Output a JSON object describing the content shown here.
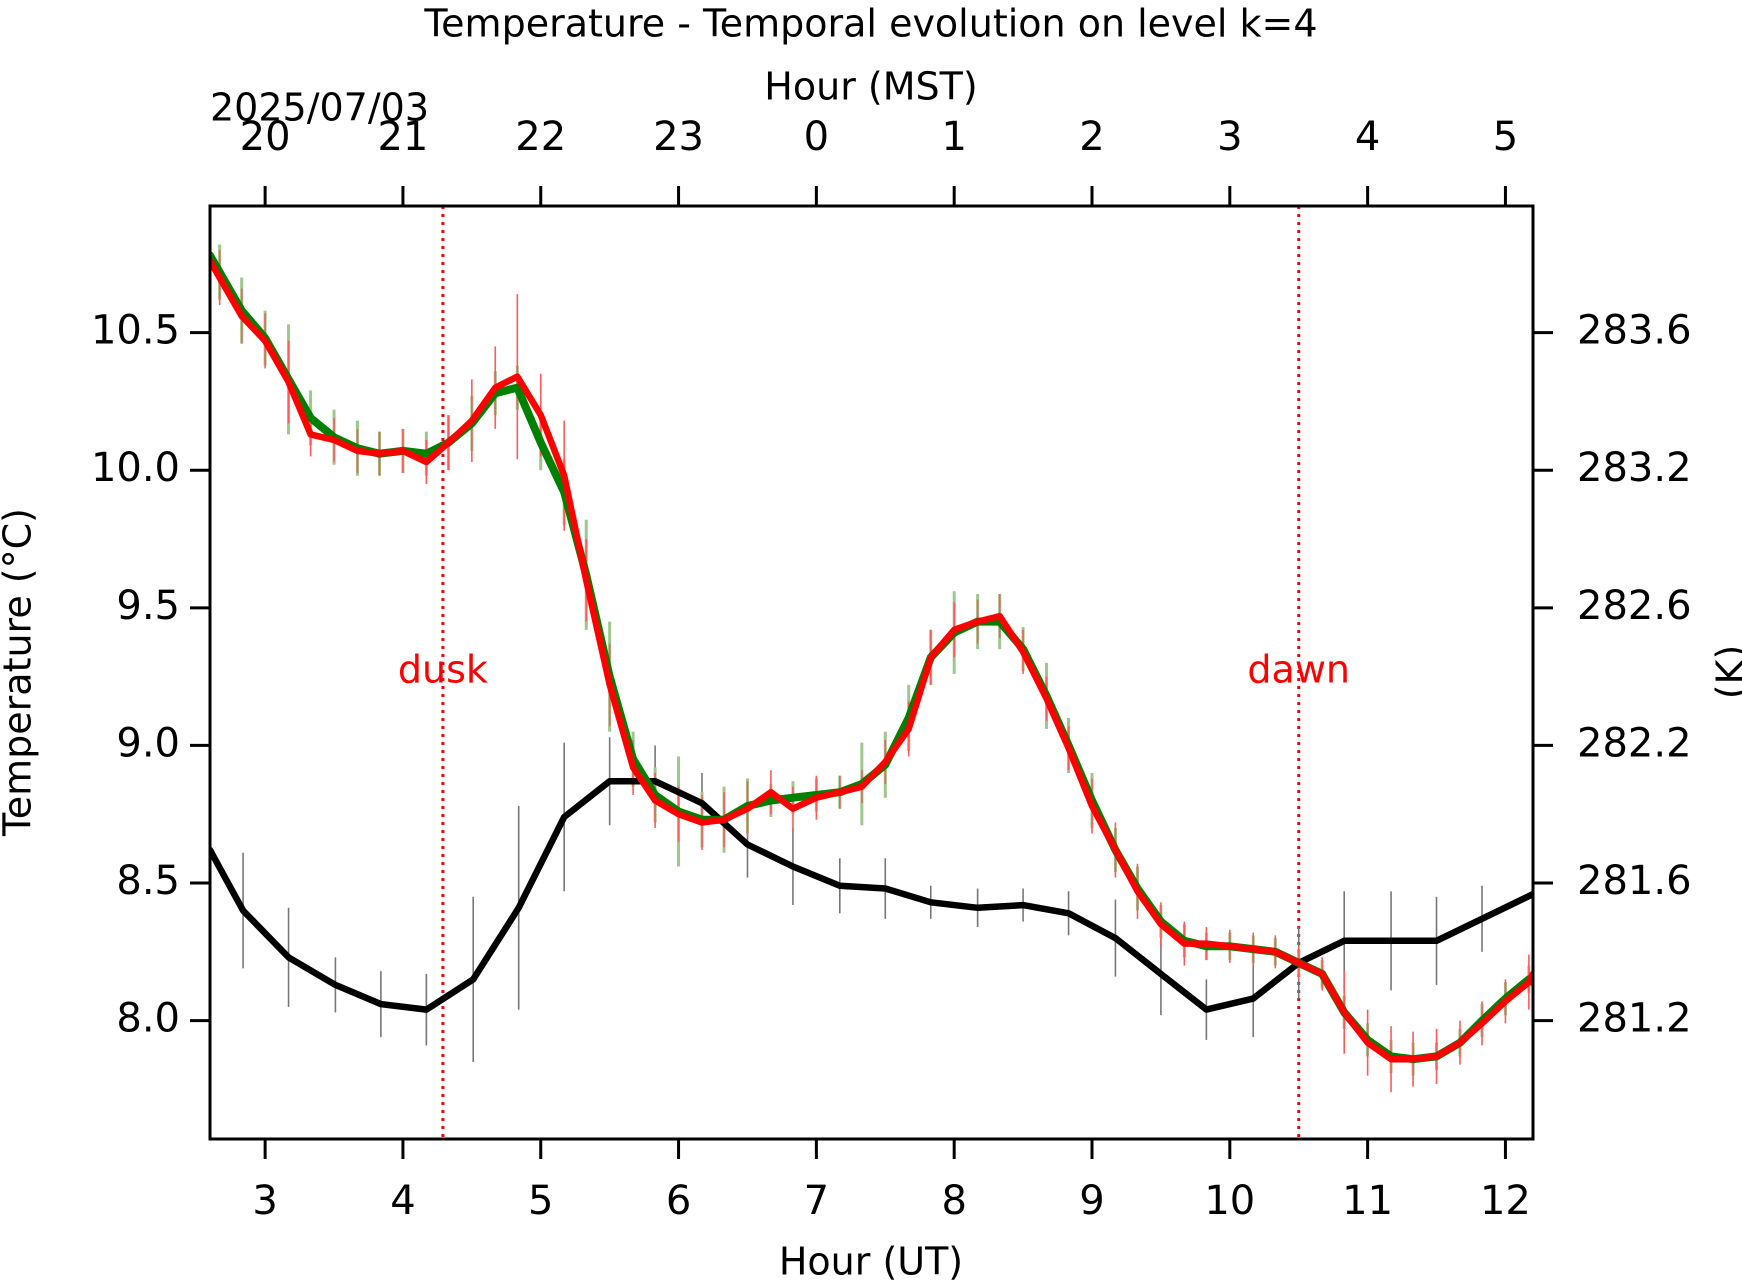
{
  "chart_data": {
    "type": "line",
    "title": "Temperature - Temporal evolution on level k=4",
    "xlabel": "Hour (UT)",
    "x2label": "Hour (MST)",
    "date_label": "2025/07/03",
    "ylabel": "Temperature (°C)",
    "y2label": "(K)",
    "xlim": [
      2.6,
      12.2
    ],
    "xticks": [
      3,
      4,
      5,
      6,
      7,
      8,
      9,
      10,
      11,
      12
    ],
    "x2ticks": [
      {
        "value": 3,
        "label": "20"
      },
      {
        "value": 4,
        "label": "21"
      },
      {
        "value": 5,
        "label": "22"
      },
      {
        "value": 6,
        "label": "23"
      },
      {
        "value": 7,
        "label": "0"
      },
      {
        "value": 8,
        "label": "1"
      },
      {
        "value": 9,
        "label": "2"
      },
      {
        "value": 10,
        "label": "3"
      },
      {
        "value": 11,
        "label": "4"
      },
      {
        "value": 12,
        "label": "5"
      }
    ],
    "ylim": [
      7.57,
      10.96
    ],
    "yticks": [
      {
        "value": 8,
        "label": "8.0"
      },
      8.5,
      {
        "value": 9,
        "label": "9.0"
      },
      9.5,
      {
        "value": 10,
        "label": "10.0"
      },
      10.5
    ],
    "y2lim": [
      280.72,
      284.11
    ],
    "y2ticks": [
      {
        "value": 281.15,
        "label": "281.2"
      },
      {
        "value": 281.65,
        "label": "281.6"
      },
      {
        "value": 282.15,
        "label": "282.2"
      },
      {
        "value": 282.65,
        "label": "282.6"
      },
      {
        "value": 283.15,
        "label": "283.2"
      },
      {
        "value": 283.65,
        "label": "283.6"
      }
    ],
    "vlines": [
      {
        "x": 4.29,
        "label": "dusk",
        "color": "#ff0000"
      },
      {
        "x": 10.5,
        "label": "dawn",
        "color": "#ff0000"
      }
    ],
    "series": [
      {
        "color": "#000000",
        "error_color": "#777777",
        "x": [
          2.6,
          2.84,
          3.17,
          3.51,
          3.84,
          4.17,
          4.51,
          4.84,
          5.17,
          5.5,
          5.83,
          6.17,
          6.5,
          6.83,
          7.17,
          7.5,
          7.83,
          8.17,
          8.5,
          8.83,
          9.17,
          9.5,
          9.83,
          10.17,
          10.5,
          10.83,
          11.17,
          11.5,
          11.83,
          12.2
        ],
        "values": [
          8.62,
          8.4,
          8.23,
          8.13,
          8.06,
          8.04,
          8.15,
          8.41,
          8.74,
          8.87,
          8.87,
          8.79,
          8.64,
          8.56,
          8.49,
          8.48,
          8.43,
          8.41,
          8.42,
          8.39,
          8.3,
          8.17,
          8.04,
          8.08,
          8.21,
          8.29,
          8.29,
          8.29,
          8.37,
          8.46
        ],
        "errors": [
          null,
          0.21,
          0.18,
          0.1,
          0.12,
          0.13,
          0.3,
          0.37,
          0.27,
          0.16,
          0.13,
          0.11,
          0.12,
          0.14,
          0.1,
          0.11,
          0.06,
          0.07,
          0.06,
          0.08,
          0.14,
          0.15,
          0.11,
          0.14,
          0.13,
          0.18,
          0.18,
          0.16,
          0.12,
          0.12
        ]
      },
      {
        "color": "#008000",
        "error_color": "#9cc88c",
        "x": [
          2.6,
          2.67,
          2.83,
          3.0,
          3.17,
          3.33,
          3.5,
          3.67,
          3.83,
          4.0,
          4.17,
          4.33,
          4.5,
          4.67,
          4.83,
          5.0,
          5.17,
          5.33,
          5.5,
          5.67,
          5.83,
          6.0,
          6.17,
          6.33,
          6.5,
          6.67,
          6.83,
          7.0,
          7.17,
          7.33,
          7.5,
          7.67,
          7.83,
          8.0,
          8.17,
          8.33,
          8.5,
          8.67,
          8.83,
          9.0,
          9.17,
          9.33,
          9.5,
          9.67,
          9.83,
          10.0,
          10.17,
          10.33,
          10.5,
          10.67,
          10.83,
          11.0,
          11.17,
          11.33,
          11.5,
          11.67,
          11.83,
          12.0,
          12.17,
          12.2
        ],
        "values": [
          10.78,
          10.72,
          10.58,
          10.48,
          10.33,
          10.19,
          10.12,
          10.08,
          10.06,
          10.07,
          10.06,
          10.1,
          10.17,
          10.28,
          10.3,
          10.1,
          9.92,
          9.62,
          9.25,
          8.95,
          8.82,
          8.76,
          8.73,
          8.73,
          8.78,
          8.8,
          8.81,
          8.82,
          8.83,
          8.86,
          8.93,
          9.1,
          9.32,
          9.41,
          9.45,
          9.45,
          9.35,
          9.18,
          9.0,
          8.8,
          8.62,
          8.48,
          8.36,
          8.29,
          8.27,
          8.27,
          8.26,
          8.25,
          8.21,
          8.17,
          8.03,
          7.93,
          7.87,
          7.86,
          7.87,
          7.92,
          8.0,
          8.08,
          8.15,
          8.14
        ],
        "errors": [
          0.1,
          0.1,
          0.12,
          0.1,
          0.2,
          0.1,
          0.1,
          0.1,
          0.08,
          0.08,
          0.08,
          0.1,
          0.1,
          0.08,
          0.08,
          0.1,
          0.12,
          0.2,
          0.2,
          0.1,
          0.1,
          0.2,
          0.1,
          0.12,
          0.1,
          0.06,
          0.06,
          0.06,
          0.06,
          0.15,
          0.12,
          0.12,
          0.1,
          0.15,
          0.1,
          0.1,
          0.08,
          0.12,
          0.1,
          0.1,
          0.08,
          0.08,
          0.06,
          0.06,
          0.05,
          0.05,
          0.05,
          0.05,
          0.05,
          0.05,
          0.06,
          0.06,
          0.06,
          0.06,
          0.05,
          0.05,
          0.06,
          0.06,
          0.05,
          0.05
        ]
      },
      {
        "color": "#ff0000",
        "error_color": "#ff5a5a",
        "x": [
          2.6,
          2.67,
          2.83,
          3.0,
          3.17,
          3.33,
          3.5,
          3.67,
          3.83,
          4.0,
          4.17,
          4.33,
          4.5,
          4.67,
          4.83,
          5.0,
          5.17,
          5.33,
          5.5,
          5.67,
          5.83,
          6.0,
          6.17,
          6.33,
          6.5,
          6.67,
          6.83,
          7.0,
          7.17,
          7.33,
          7.5,
          7.67,
          7.83,
          8.0,
          8.17,
          8.33,
          8.5,
          8.67,
          8.83,
          9.0,
          9.17,
          9.33,
          9.5,
          9.67,
          9.83,
          10.0,
          10.17,
          10.33,
          10.5,
          10.67,
          10.83,
          11.0,
          11.17,
          11.33,
          11.5,
          11.67,
          11.83,
          12.0,
          12.17,
          12.2
        ],
        "values": [
          10.76,
          10.7,
          10.56,
          10.47,
          10.32,
          10.13,
          10.11,
          10.07,
          10.06,
          10.07,
          10.03,
          10.1,
          10.18,
          10.3,
          10.34,
          10.2,
          9.98,
          9.6,
          9.22,
          8.92,
          8.8,
          8.75,
          8.72,
          8.73,
          8.77,
          8.83,
          8.77,
          8.81,
          8.83,
          8.85,
          8.94,
          9.06,
          9.32,
          9.42,
          9.45,
          9.47,
          9.34,
          9.17,
          8.99,
          8.78,
          8.62,
          8.47,
          8.35,
          8.28,
          8.28,
          8.27,
          8.26,
          8.25,
          8.21,
          8.17,
          8.03,
          7.92,
          7.86,
          7.86,
          7.87,
          7.92,
          7.99,
          8.07,
          8.14,
          8.17
        ],
        "errors": [
          0.08,
          0.1,
          0.1,
          0.1,
          0.15,
          0.08,
          0.08,
          0.08,
          0.08,
          0.08,
          0.08,
          0.1,
          0.15,
          0.15,
          0.3,
          0.15,
          0.2,
          0.15,
          0.15,
          0.1,
          0.1,
          0.1,
          0.1,
          0.1,
          0.1,
          0.08,
          0.08,
          0.08,
          0.06,
          0.06,
          0.08,
          0.1,
          0.1,
          0.1,
          0.08,
          0.08,
          0.08,
          0.08,
          0.08,
          0.1,
          0.1,
          0.1,
          0.08,
          0.08,
          0.06,
          0.06,
          0.06,
          0.06,
          0.06,
          0.06,
          0.15,
          0.12,
          0.12,
          0.1,
          0.1,
          0.08,
          0.08,
          0.08,
          0.1,
          0.1
        ]
      }
    ]
  }
}
